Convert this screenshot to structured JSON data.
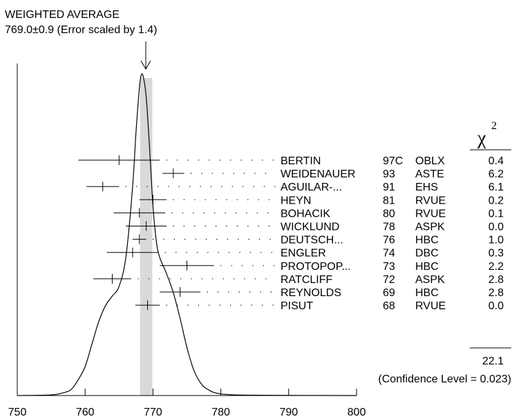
{
  "header": {
    "title": "WEIGHTED AVERAGE",
    "subtitle": "769.0±0.9 (Error scaled by 1.4)"
  },
  "chi2_header": {
    "symbol": "χ",
    "exponent": "2"
  },
  "chi2_total": "22.1",
  "confidence_note": "(Confidence Level = 0.023)",
  "chart_data": {
    "type": "scatter",
    "xlim": [
      750,
      800
    ],
    "x_ticks": [
      "750",
      "760",
      "770",
      "780",
      "790",
      "800"
    ],
    "weighted_average": {
      "value": 769.0,
      "error": 0.9
    },
    "measurements": [
      {
        "name": "BERTIN",
        "year": "97C",
        "tech": "OBLX",
        "chi2": "0.4",
        "value": 765.0,
        "low": 759.0,
        "high": 771.0
      },
      {
        "name": "WEIDENAUER",
        "year": "93",
        "tech": "ASTE",
        "chi2": "6.2",
        "value": 773.0,
        "low": 771.4,
        "high": 774.6
      },
      {
        "name": "AGUILAR-...",
        "year": "91",
        "tech": "EHS",
        "chi2": "6.1",
        "value": 762.6,
        "low": 760.2,
        "high": 765.0
      },
      {
        "name": "HEYN",
        "year": "81",
        "tech": "RVUE",
        "chi2": "0.2",
        "value": 770.0,
        "low": 768.0,
        "high": 772.0
      },
      {
        "name": "BOHACIK",
        "year": "80",
        "tech": "RVUE",
        "chi2": "0.1",
        "value": 768.0,
        "low": 764.2,
        "high": 771.8
      },
      {
        "name": "WICKLUND",
        "year": "78",
        "tech": "ASPK",
        "chi2": "0.0",
        "value": 769.0,
        "low": 766.0,
        "high": 772.0
      },
      {
        "name": "DEUTSCH...",
        "year": "76",
        "tech": "HBC",
        "chi2": "1.0",
        "value": 768.0,
        "low": 767.0,
        "high": 769.0
      },
      {
        "name": "ENGLER",
        "year": "74",
        "tech": "DBC",
        "chi2": "0.3",
        "value": 767.0,
        "low": 763.2,
        "high": 770.8
      },
      {
        "name": "PROTOPOP...",
        "year": "73",
        "tech": "HBC",
        "chi2": "2.2",
        "value": 775.0,
        "low": 771.0,
        "high": 779.0
      },
      {
        "name": "RATCLIFF",
        "year": "72",
        "tech": "ASPK",
        "chi2": "2.8",
        "value": 764.0,
        "low": 761.2,
        "high": 766.8
      },
      {
        "name": "REYNOLDS",
        "year": "69",
        "tech": "HBC",
        "chi2": "2.8",
        "value": 774.0,
        "low": 771.0,
        "high": 777.0
      },
      {
        "name": "PISUT",
        "year": "68",
        "tech": "RVUE",
        "chi2": "0.0",
        "value": 769.2,
        "low": 767.4,
        "high": 771.0
      }
    ],
    "ideogram_curve": [
      [
        750,
        0
      ],
      [
        755,
        0.002
      ],
      [
        757,
        0.01
      ],
      [
        758,
        0.02
      ],
      [
        759,
        0.05
      ],
      [
        760,
        0.09
      ],
      [
        761,
        0.16
      ],
      [
        762,
        0.23
      ],
      [
        763,
        0.28
      ],
      [
        764,
        0.31
      ],
      [
        765,
        0.34
      ],
      [
        766,
        0.43
      ],
      [
        767,
        0.65
      ],
      [
        767.5,
        0.82
      ],
      [
        768,
        0.96
      ],
      [
        768.3,
        1.0
      ],
      [
        768.6,
        0.99
      ],
      [
        769,
        0.93
      ],
      [
        769.5,
        0.77
      ],
      [
        770,
        0.59
      ],
      [
        770.5,
        0.48
      ],
      [
        771,
        0.43
      ],
      [
        772,
        0.38
      ],
      [
        773,
        0.32
      ],
      [
        774,
        0.24
      ],
      [
        775,
        0.15
      ],
      [
        776,
        0.08
      ],
      [
        777,
        0.04
      ],
      [
        778,
        0.02
      ],
      [
        780,
        0.005
      ],
      [
        785,
        0.001
      ],
      [
        800,
        0
      ]
    ]
  }
}
